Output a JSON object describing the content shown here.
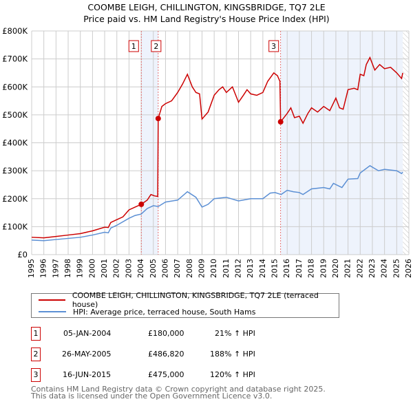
{
  "chart_data": {
    "type": "line",
    "title": "COOMBE LEIGH, CHILLINGTON, KINGSBRIDGE, TQ7 2LE",
    "subtitle": "Price paid vs. HM Land Registry's House Price Index (HPI)",
    "xlim": [
      1995,
      2026
    ],
    "ylim": [
      0,
      800000
    ],
    "x_ticks": [
      "1995",
      "1996",
      "1997",
      "1998",
      "1999",
      "2000",
      "2001",
      "2002",
      "2003",
      "2004",
      "2005",
      "2006",
      "2007",
      "2008",
      "2009",
      "2010",
      "2011",
      "2012",
      "2013",
      "2014",
      "2015",
      "2016",
      "2017",
      "2018",
      "2019",
      "2020",
      "2021",
      "2022",
      "2023",
      "2024",
      "2025",
      "2026"
    ],
    "y_ticks": [
      {
        "v": 0,
        "label": "£0"
      },
      {
        "v": 100000,
        "label": "£100K"
      },
      {
        "v": 200000,
        "label": "£200K"
      },
      {
        "v": 300000,
        "label": "£300K"
      },
      {
        "v": 400000,
        "label": "£400K"
      },
      {
        "v": 500000,
        "label": "£500K"
      },
      {
        "v": 600000,
        "label": "£600K"
      },
      {
        "v": 700000,
        "label": "£700K"
      },
      {
        "v": 800000,
        "label": "£800K"
      }
    ],
    "grid": true,
    "series": [
      {
        "name": "COOMBE LEIGH, CHILLINGTON, KINGSBRIDGE, TQ7 2LE (terraced house)",
        "color": "#cc0000",
        "points": [
          [
            1995,
            62000
          ],
          [
            1996,
            60000
          ],
          [
            1997,
            65000
          ],
          [
            1998,
            70000
          ],
          [
            1999,
            75000
          ],
          [
            2000,
            85000
          ],
          [
            2001,
            98000
          ],
          [
            2001.3,
            97000
          ],
          [
            2001.5,
            115000
          ],
          [
            2002,
            125000
          ],
          [
            2002.5,
            135000
          ],
          [
            2003,
            160000
          ],
          [
            2003.5,
            170000
          ],
          [
            2004.01,
            180000
          ],
          [
            2004.5,
            195000
          ],
          [
            2004.8,
            215000
          ],
          [
            2005.1,
            210000
          ],
          [
            2005.36,
            208000
          ],
          [
            2005.4,
            486820
          ],
          [
            2005.7,
            530000
          ],
          [
            2006,
            540000
          ],
          [
            2006.5,
            550000
          ],
          [
            2007,
            580000
          ],
          [
            2007.4,
            610000
          ],
          [
            2007.8,
            645000
          ],
          [
            2008.2,
            600000
          ],
          [
            2008.5,
            580000
          ],
          [
            2008.8,
            575000
          ],
          [
            2009,
            485000
          ],
          [
            2009.5,
            510000
          ],
          [
            2010,
            570000
          ],
          [
            2010.4,
            590000
          ],
          [
            2010.7,
            600000
          ],
          [
            2011,
            580000
          ],
          [
            2011.5,
            600000
          ],
          [
            2012,
            545000
          ],
          [
            2012.4,
            570000
          ],
          [
            2012.7,
            590000
          ],
          [
            2013,
            575000
          ],
          [
            2013.5,
            570000
          ],
          [
            2014,
            580000
          ],
          [
            2014.4,
            620000
          ],
          [
            2014.9,
            650000
          ],
          [
            2015.2,
            640000
          ],
          [
            2015.4,
            620000
          ],
          [
            2015.46,
            475000
          ],
          [
            2016,
            505000
          ],
          [
            2016.3,
            525000
          ],
          [
            2016.6,
            490000
          ],
          [
            2017,
            495000
          ],
          [
            2017.3,
            470000
          ],
          [
            2017.7,
            505000
          ],
          [
            2018,
            525000
          ],
          [
            2018.5,
            510000
          ],
          [
            2019,
            530000
          ],
          [
            2019.5,
            515000
          ],
          [
            2020,
            560000
          ],
          [
            2020.3,
            525000
          ],
          [
            2020.6,
            520000
          ],
          [
            2021,
            590000
          ],
          [
            2021.5,
            595000
          ],
          [
            2021.8,
            590000
          ],
          [
            2022,
            645000
          ],
          [
            2022.3,
            640000
          ],
          [
            2022.5,
            680000
          ],
          [
            2022.8,
            705000
          ],
          [
            2023.2,
            660000
          ],
          [
            2023.6,
            680000
          ],
          [
            2024,
            665000
          ],
          [
            2024.5,
            670000
          ],
          [
            2025,
            650000
          ],
          [
            2025.4,
            630000
          ],
          [
            2025.5,
            650000
          ]
        ]
      },
      {
        "name": "HPI: Average price, terraced house, South Hams",
        "color": "#5b8fd4",
        "points": [
          [
            1995,
            52000
          ],
          [
            1996,
            50000
          ],
          [
            1997,
            54000
          ],
          [
            1998,
            58000
          ],
          [
            1999,
            62000
          ],
          [
            2000,
            70000
          ],
          [
            2001,
            80000
          ],
          [
            2001.3,
            78000
          ],
          [
            2001.5,
            95000
          ],
          [
            2002,
            105000
          ],
          [
            2003,
            130000
          ],
          [
            2003.5,
            140000
          ],
          [
            2004,
            145000
          ],
          [
            2004.5,
            165000
          ],
          [
            2005,
            175000
          ],
          [
            2005.4,
            172000
          ],
          [
            2006,
            188000
          ],
          [
            2007,
            195000
          ],
          [
            2007.8,
            225000
          ],
          [
            2008.5,
            205000
          ],
          [
            2009,
            170000
          ],
          [
            2009.5,
            180000
          ],
          [
            2010,
            200000
          ],
          [
            2011,
            205000
          ],
          [
            2012,
            192000
          ],
          [
            2013,
            200000
          ],
          [
            2014,
            200000
          ],
          [
            2014.6,
            220000
          ],
          [
            2015,
            222000
          ],
          [
            2015.5,
            215000
          ],
          [
            2016,
            230000
          ],
          [
            2016.5,
            225000
          ],
          [
            2017,
            222000
          ],
          [
            2017.3,
            215000
          ],
          [
            2018,
            235000
          ],
          [
            2019,
            240000
          ],
          [
            2019.5,
            235000
          ],
          [
            2019.8,
            255000
          ],
          [
            2020.5,
            240000
          ],
          [
            2021,
            270000
          ],
          [
            2021.8,
            272000
          ],
          [
            2022,
            292000
          ],
          [
            2022.8,
            318000
          ],
          [
            2023.5,
            300000
          ],
          [
            2024,
            305000
          ],
          [
            2025,
            300000
          ],
          [
            2025.4,
            290000
          ],
          [
            2025.5,
            295000
          ]
        ]
      }
    ],
    "sales": [
      {
        "n": "1",
        "x": 2004.01,
        "v": 180000
      },
      {
        "n": "2",
        "x": 2005.4,
        "v": 486820
      },
      {
        "n": "3",
        "x": 2015.46,
        "v": 475000
      }
    ],
    "shaded": [
      [
        2004.01,
        2005.4
      ],
      [
        2015.46,
        2025.5
      ]
    ],
    "hatched_from": 2025.5
  },
  "legend": {
    "property": "COOMBE LEIGH, CHILLINGTON, KINGSBRIDGE, TQ7 2LE (terraced house)",
    "hpi": "HPI: Average price, terraced house, South Hams"
  },
  "transactions": [
    {
      "n": "1",
      "date": "05-JAN-2004",
      "price": "£180,000",
      "hpi": "21% ↑ HPI"
    },
    {
      "n": "2",
      "date": "26-MAY-2005",
      "price": "£486,820",
      "hpi": "188% ↑ HPI"
    },
    {
      "n": "3",
      "date": "16-JUN-2015",
      "price": "£475,000",
      "hpi": "120% ↑ HPI"
    }
  ],
  "footer": {
    "line1": "Contains HM Land Registry data © Crown copyright and database right 2025.",
    "line2": "This data is licensed under the Open Government Licence v3.0."
  }
}
